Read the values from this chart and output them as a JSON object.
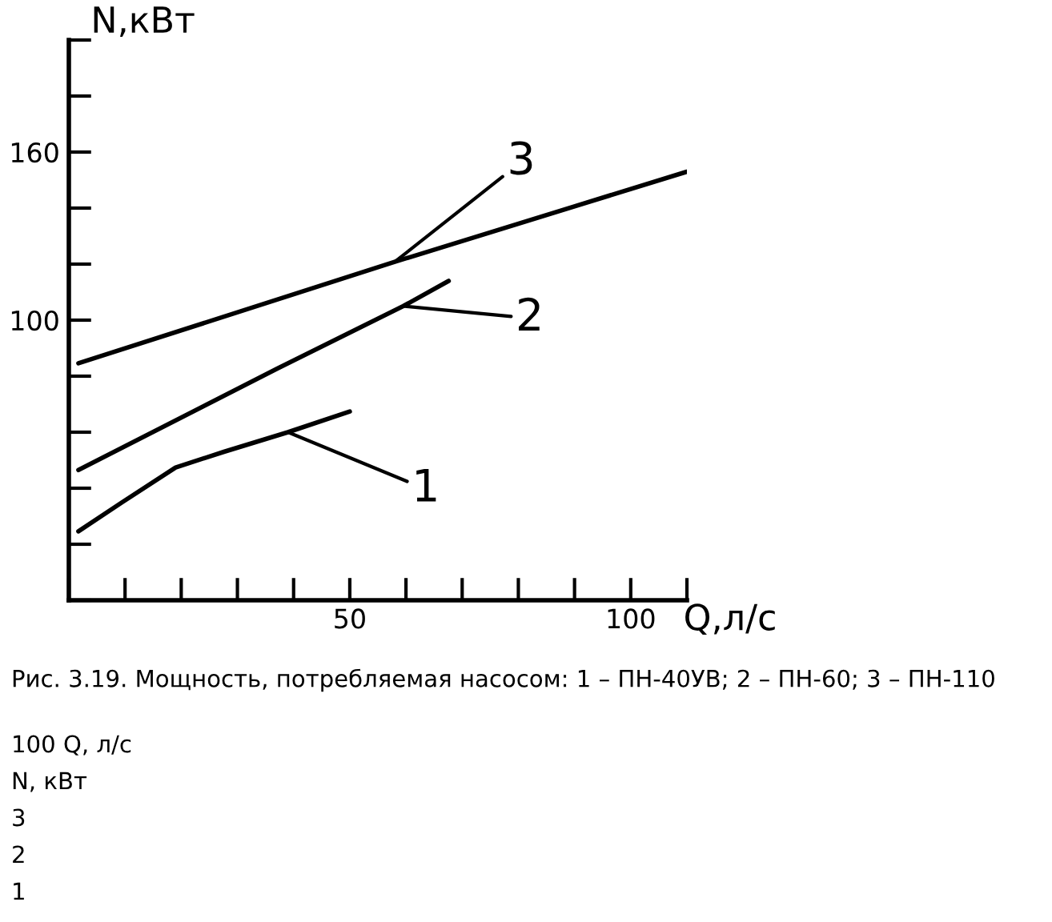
{
  "chart_data": {
    "type": "line",
    "xlabel": "Q,л/с",
    "ylabel": "N,кВт",
    "series": [
      {
        "color": "#000000",
        "x": [
          1.7,
          9.5,
          19,
          27.6,
          39,
          50
        ],
        "values": [
          24.6,
          35,
          47.4,
          53,
          60,
          67.4
        ]
      },
      {
        "color": "#000000",
        "x": [
          1.7,
          37.1,
          59.5,
          67.6
        ],
        "values": [
          46.5,
          82.7,
          105,
          114
        ]
      },
      {
        "color": "#000000",
        "x": [
          1.7,
          58,
          110
        ],
        "values": [
          84.6,
          120.8,
          153
        ]
      }
    ],
    "xlim": [
      0,
      110
    ],
    "xticks": [
      {
        "value": 0,
        "label": null
      },
      {
        "value": 10,
        "label": null
      },
      {
        "value": 20,
        "label": null
      },
      {
        "value": 30,
        "label": null
      },
      {
        "value": 40,
        "label": null
      },
      50,
      {
        "value": 60,
        "label": null
      },
      {
        "value": 70,
        "label": null
      },
      {
        "value": 80,
        "label": null
      },
      {
        "value": 90,
        "label": null
      },
      100,
      {
        "value": 110,
        "label": null
      }
    ],
    "ylim": [
      0,
      200
    ],
    "yticks": [
      {
        "value": 0,
        "label": null
      },
      {
        "value": 20,
        "label": null
      },
      {
        "value": 40,
        "label": null
      },
      {
        "value": 60,
        "label": null
      },
      {
        "value": 80,
        "label": null
      },
      100,
      {
        "value": 120,
        "label": null
      },
      {
        "value": 140,
        "label": null
      },
      160,
      {
        "value": 180,
        "label": null
      },
      {
        "value": 200,
        "label": null
      }
    ],
    "grid": false,
    "marker": "none",
    "line_style": "solid",
    "annotations": [
      {
        "text": "1",
        "x": 39,
        "y": 60
      },
      {
        "text": "2",
        "x": 59.5,
        "y": 105
      },
      {
        "text": "3",
        "x": 58,
        "y": 120.8
      },
      "Рис. 3.19. Мощность, потребляемая насосом: 1 – ПН-40УВ; 2 – ПН-60; 3 – ПН-110",
      "100 Q, л/с",
      "N, кВт",
      "3",
      "2",
      "1"
    ]
  }
}
